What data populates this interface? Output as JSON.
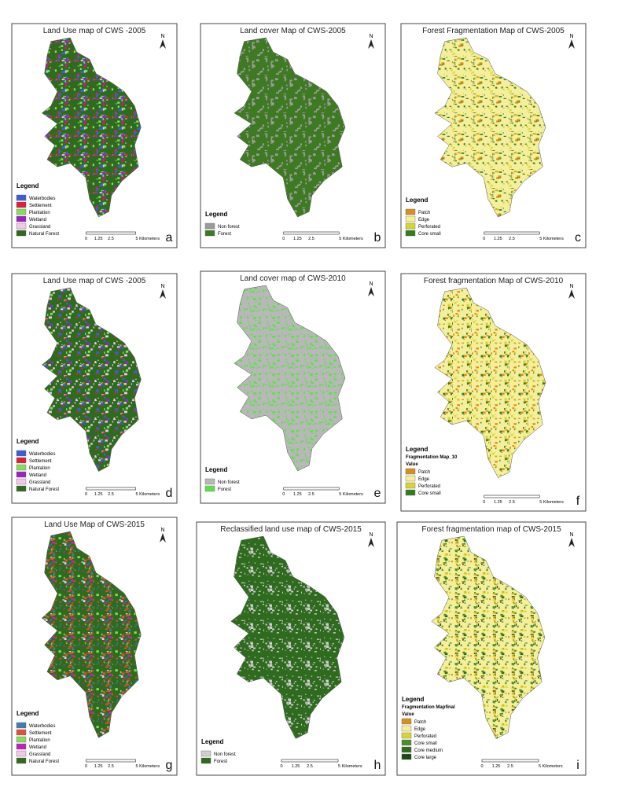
{
  "panels": [
    {
      "title": "Land Use map of CWS -2005",
      "letter": "a",
      "legend_title": "Legend",
      "legend_items": [
        {
          "label": "Waterbodies",
          "color": "#3b5fd9"
        },
        {
          "label": "Settlement",
          "color": "#e0203a"
        },
        {
          "label": "Plantation",
          "color": "#7fe05a"
        },
        {
          "label": "Wetland",
          "color": "#a020c0"
        },
        {
          "label": "Grassland",
          "color": "#f2c8e6"
        },
        {
          "label": "Natural Forest",
          "color": "#2f6b1e"
        }
      ],
      "scale_labels": [
        "0",
        "1.25",
        "2.5",
        "5 Kilometers"
      ]
    },
    {
      "title": "Land cover Map of CWS-2005",
      "letter": "b",
      "legend_title": "Legend",
      "legend_items": [
        {
          "label": "Non forest",
          "color": "#9a9a9a"
        },
        {
          "label": "Forest",
          "color": "#3e7a22"
        }
      ],
      "scale_labels": [
        "0",
        "1.25",
        "2.5",
        "5 Kilometers"
      ]
    },
    {
      "title": "Forest Fragmentation Map of CWS-2005",
      "letter": "c",
      "legend_title": "Legend",
      "legend_items": [
        {
          "label": "Patch",
          "color": "#d98f1a"
        },
        {
          "label": "Edge",
          "color": "#f4ef9c"
        },
        {
          "label": "Perforated",
          "color": "#d8d62a"
        },
        {
          "label": "Core small",
          "color": "#2f7d1c"
        }
      ],
      "scale_labels": [
        "0",
        "1.25",
        "2.5",
        "5 Kilometers"
      ]
    },
    {
      "title": "Land Use map of CWS -2005",
      "letter": "d",
      "legend_title": "Legend",
      "legend_items": [
        {
          "label": "Waterbodies",
          "color": "#3b5fd9"
        },
        {
          "label": "Settlement",
          "color": "#e0203a"
        },
        {
          "label": "Plantation",
          "color": "#7fe05a"
        },
        {
          "label": "Wetland",
          "color": "#a020c0"
        },
        {
          "label": "Grassland",
          "color": "#f2c8e6"
        },
        {
          "label": "Natural Forest",
          "color": "#2f6b1e"
        }
      ],
      "scale_labels": [
        "0",
        "1.25",
        "2.5",
        "5 Kilometers"
      ]
    },
    {
      "title": "Land cover map of CWS-2010",
      "letter": "e",
      "legend_title": "Legend",
      "legend_items": [
        {
          "label": "Non forest",
          "color": "#b8b8b8"
        },
        {
          "label": "Forest",
          "color": "#5ee04a"
        }
      ],
      "scale_labels": [
        "0",
        "1.25",
        "2.5",
        "5 Kilometers"
      ]
    },
    {
      "title": "Forest fragmentation Map of CWS-2010",
      "letter": "f",
      "legend_title": "Legend",
      "legend_subtitle": "Fragmentation Map_10",
      "legend_value": "Value",
      "legend_items": [
        {
          "label": "Patch",
          "color": "#d98f1a"
        },
        {
          "label": "Edge",
          "color": "#f4ef9c"
        },
        {
          "label": "Perforated",
          "color": "#d8d62a"
        },
        {
          "label": "Core small",
          "color": "#2f7d1c"
        }
      ],
      "scale_labels": [
        "0",
        "1.25",
        "2.5",
        "5 Kilometers"
      ]
    },
    {
      "title": "Land Use Map of CWS-2015",
      "letter": "g",
      "legend_title": "Legend",
      "legend_items": [
        {
          "label": "Waterbodies",
          "color": "#3b7fb0"
        },
        {
          "label": "Settlement",
          "color": "#e0503a"
        },
        {
          "label": "Plantation",
          "color": "#7fe05a"
        },
        {
          "label": "Wetland",
          "color": "#c020c0"
        },
        {
          "label": "Grassland",
          "color": "#f2c8e6"
        },
        {
          "label": "Natural Forest",
          "color": "#2f6b1e"
        }
      ],
      "scale_labels": [
        "0",
        "1.25",
        "2.5",
        "5 Kilometers"
      ]
    },
    {
      "title": "Reclassified land use map of CWS-2015",
      "letter": "h",
      "legend_title": "Legend",
      "legend_items": [
        {
          "label": "Non forest",
          "color": "#cfcfcf"
        },
        {
          "label": "Forest",
          "color": "#2f6b1e"
        }
      ],
      "scale_labels": [
        "0",
        "1.25",
        "2.5",
        "5 Kilometers"
      ]
    },
    {
      "title": "Forest fragmentation map of CWS-2015",
      "letter": "i",
      "legend_title": "Legend",
      "legend_subtitle": "Fragmentation Mapfinal",
      "legend_value": "Value",
      "legend_items": [
        {
          "label": "Patch",
          "color": "#d98f1a"
        },
        {
          "label": "Edge",
          "color": "#f4ef9c"
        },
        {
          "label": "Perforated",
          "color": "#d8d62a"
        },
        {
          "label": "Core small",
          "color": "#4a8f2a"
        },
        {
          "label": "Core medium",
          "color": "#2f6b1e"
        },
        {
          "label": "Core large",
          "color": "#174a10"
        }
      ],
      "scale_labels": [
        "0",
        "1.25",
        "2.5",
        "5 Kilometers"
      ]
    }
  ],
  "north_label": "N"
}
